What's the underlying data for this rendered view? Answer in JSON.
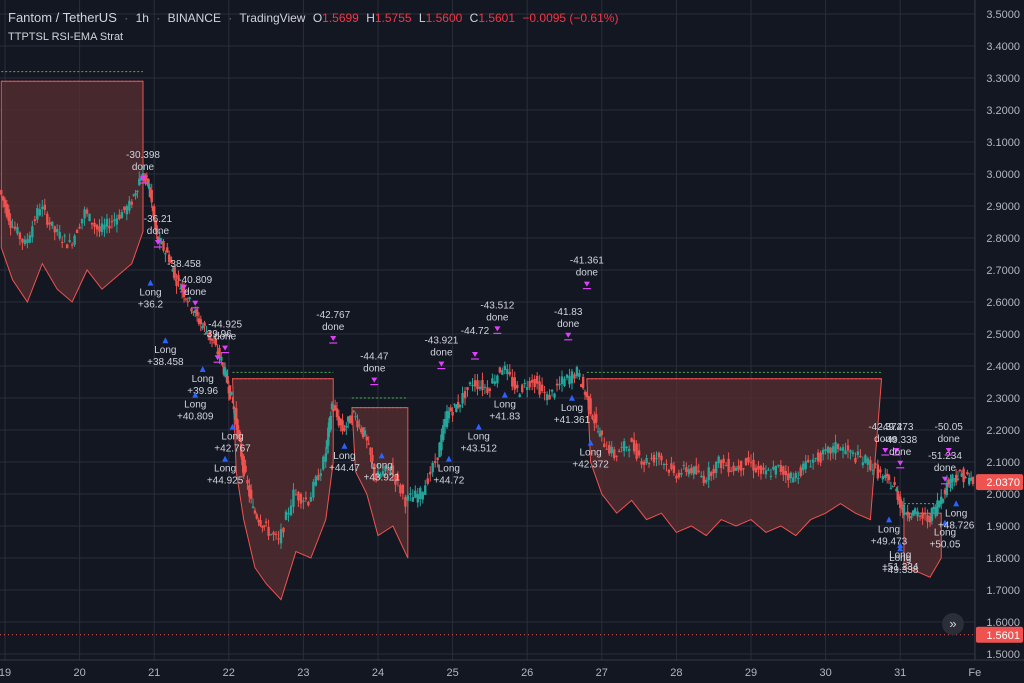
{
  "header": {
    "symbol": "Fantom / TetherUS",
    "interval": "1h",
    "exchange": "BINANCE",
    "source": "TradingView",
    "open_label": "O",
    "open": "1.5699",
    "high_label": "H",
    "high": "1.5755",
    "low_label": "L",
    "low": "1.5600",
    "close_label": "C",
    "close": "1.5601",
    "change": "−0.0095 (−0.61%)"
  },
  "study_title": "TTPTSL RSI-EMA Strat",
  "colors": {
    "background": "#131722",
    "grid": "#2a2e39",
    "up": "#26a69a",
    "down": "#ef5350",
    "stop_fill": "#5a2f30",
    "profit_line": "#4caf50",
    "entry_arrow": "#2962ff",
    "exit_marker": "#e040fb"
  },
  "chart_data": {
    "type": "candlestick",
    "y_axis": {
      "min": 1.5,
      "max": 3.5,
      "ticks": [
        "3.5000",
        "3.4000",
        "3.3000",
        "3.2000",
        "3.1000",
        "3.0000",
        "2.9000",
        "2.8000",
        "2.7000",
        "2.6000",
        "2.5000",
        "2.4000",
        "2.3000",
        "2.2000",
        "2.1000",
        "2.0000",
        "1.9000",
        "1.8000",
        "1.7000",
        "1.6000",
        "1.5000"
      ]
    },
    "x_axis": {
      "labels": [
        "19",
        "20",
        "21",
        "22",
        "23",
        "24",
        "25",
        "26",
        "27",
        "28",
        "29",
        "30",
        "31",
        "Fe"
      ]
    },
    "price_badges": [
      {
        "label": "2.0370",
        "value": 2.037,
        "color": "#ef5350"
      },
      {
        "label": "1.5601",
        "value": 1.5601,
        "color": "#ef5350"
      }
    ],
    "price_path": [
      [
        18.95,
        2.95
      ],
      [
        19.1,
        2.85
      ],
      [
        19.3,
        2.78
      ],
      [
        19.5,
        2.9
      ],
      [
        19.7,
        2.82
      ],
      [
        19.9,
        2.78
      ],
      [
        20.1,
        2.88
      ],
      [
        20.3,
        2.82
      ],
      [
        20.5,
        2.86
      ],
      [
        20.7,
        2.9
      ],
      [
        20.85,
        3.0
      ],
      [
        20.95,
        2.96
      ],
      [
        21.05,
        2.8
      ],
      [
        21.2,
        2.75
      ],
      [
        21.3,
        2.68
      ],
      [
        21.45,
        2.62
      ],
      [
        21.6,
        2.55
      ],
      [
        21.75,
        2.5
      ],
      [
        21.9,
        2.43
      ],
      [
        22.0,
        2.35
      ],
      [
        22.1,
        2.25
      ],
      [
        22.2,
        2.1
      ],
      [
        22.35,
        1.95
      ],
      [
        22.5,
        1.9
      ],
      [
        22.7,
        1.85
      ],
      [
        22.9,
        2.0
      ],
      [
        23.1,
        1.98
      ],
      [
        23.3,
        2.1
      ],
      [
        23.4,
        2.28
      ],
      [
        23.55,
        2.2
      ],
      [
        23.7,
        2.25
      ],
      [
        23.85,
        2.18
      ],
      [
        24.0,
        2.05
      ],
      [
        24.2,
        2.08
      ],
      [
        24.4,
        1.98
      ],
      [
        24.6,
        2.0
      ],
      [
        24.8,
        2.1
      ],
      [
        24.95,
        2.25
      ],
      [
        25.1,
        2.28
      ],
      [
        25.3,
        2.35
      ],
      [
        25.5,
        2.33
      ],
      [
        25.7,
        2.4
      ],
      [
        25.9,
        2.32
      ],
      [
        26.1,
        2.36
      ],
      [
        26.3,
        2.3
      ],
      [
        26.5,
        2.35
      ],
      [
        26.7,
        2.38
      ],
      [
        26.85,
        2.28
      ],
      [
        27.0,
        2.18
      ],
      [
        27.2,
        2.12
      ],
      [
        27.4,
        2.16
      ],
      [
        27.6,
        2.1
      ],
      [
        27.8,
        2.12
      ],
      [
        28.0,
        2.06
      ],
      [
        28.2,
        2.08
      ],
      [
        28.4,
        2.05
      ],
      [
        28.6,
        2.1
      ],
      [
        28.8,
        2.08
      ],
      [
        29.0,
        2.1
      ],
      [
        29.2,
        2.06
      ],
      [
        29.4,
        2.08
      ],
      [
        29.6,
        2.05
      ],
      [
        29.8,
        2.1
      ],
      [
        30.0,
        2.12
      ],
      [
        30.2,
        2.15
      ],
      [
        30.4,
        2.12
      ],
      [
        30.6,
        2.1
      ],
      [
        30.8,
        2.05
      ],
      [
        30.95,
        2.02
      ],
      [
        31.05,
        1.95
      ],
      [
        31.2,
        1.94
      ],
      [
        31.4,
        1.92
      ],
      [
        31.55,
        1.98
      ],
      [
        31.7,
        2.05
      ],
      [
        31.85,
        2.06
      ],
      [
        32.0,
        2.04
      ]
    ],
    "stop_zones": [
      {
        "x1": 18.95,
        "x2": 20.85,
        "top": 3.29,
        "profit_line": 3.32
      },
      {
        "x1": 22.05,
        "x2": 23.4,
        "top": 2.36,
        "profit_line": 2.38
      },
      {
        "x1": 23.65,
        "x2": 24.4,
        "top": 2.27,
        "profit_line": 2.3
      },
      {
        "x1": 26.8,
        "x2": 30.75,
        "top": 2.36,
        "profit_line": 2.38
      },
      {
        "x1": 31.05,
        "x2": 31.55,
        "top": 1.94,
        "profit_line": 1.97
      }
    ],
    "current_price_line": 1.5601,
    "trade_labels": [
      {
        "text": "-30.398",
        "sub": "done",
        "x": 20.85,
        "y": 3.05,
        "kind": "exit"
      },
      {
        "text": "-36.21",
        "sub": "done",
        "x": 21.05,
        "y": 2.85,
        "kind": "exit"
      },
      {
        "text": "-38.458",
        "sub": "",
        "x": 21.4,
        "y": 2.71,
        "kind": "exit"
      },
      {
        "text": "-40.809",
        "sub": "done",
        "x": 21.55,
        "y": 2.66,
        "kind": "exit"
      },
      {
        "text": "-44.925",
        "sub": "done",
        "x": 21.95,
        "y": 2.52,
        "kind": "exit"
      },
      {
        "text": "-39.96",
        "sub": "",
        "x": 21.85,
        "y": 2.49,
        "kind": "exit"
      },
      {
        "text": "-42.767",
        "sub": "done",
        "x": 23.4,
        "y": 2.55,
        "kind": "exit"
      },
      {
        "text": "-44.47",
        "sub": "done",
        "x": 23.95,
        "y": 2.42,
        "kind": "exit"
      },
      {
        "text": "-43.921",
        "sub": "done",
        "x": 24.85,
        "y": 2.47,
        "kind": "exit"
      },
      {
        "text": "-44.72",
        "sub": "",
        "x": 25.3,
        "y": 2.5,
        "kind": "exit"
      },
      {
        "text": "-43.512",
        "sub": "done",
        "x": 25.6,
        "y": 2.58,
        "kind": "exit"
      },
      {
        "text": "-41.83",
        "sub": "done",
        "x": 26.55,
        "y": 2.56,
        "kind": "exit"
      },
      {
        "text": "-41.361",
        "sub": "done",
        "x": 26.8,
        "y": 2.72,
        "kind": "exit"
      },
      {
        "text": "-42.372",
        "sub": "done",
        "x": 30.8,
        "y": 2.2,
        "kind": "exit"
      },
      {
        "text": "-49.473",
        "sub": "",
        "x": 30.95,
        "y": 2.2,
        "kind": "exit"
      },
      {
        "text": "-49.338",
        "sub": "done",
        "x": 31.0,
        "y": 2.16,
        "kind": "exit"
      },
      {
        "text": "-51.234",
        "sub": "done",
        "x": 31.6,
        "y": 2.11,
        "kind": "exit"
      },
      {
        "text": "-50.05",
        "sub": "done",
        "x": 31.65,
        "y": 2.2,
        "kind": "exit"
      },
      {
        "text": "Long",
        "sub": "+36.2",
        "x": 20.95,
        "y": 2.62,
        "kind": "entry"
      },
      {
        "text": "Long",
        "sub": "+38.458",
        "x": 21.15,
        "y": 2.44,
        "kind": "entry"
      },
      {
        "text": "Long",
        "sub": "+39.96",
        "x": 21.65,
        "y": 2.35,
        "kind": "entry"
      },
      {
        "text": "Long",
        "sub": "+40.809",
        "x": 21.55,
        "y": 2.27,
        "kind": "entry"
      },
      {
        "text": "Long",
        "sub": "+42.767",
        "x": 22.05,
        "y": 2.17,
        "kind": "entry"
      },
      {
        "text": "Long",
        "sub": "+44.925",
        "x": 21.95,
        "y": 2.07,
        "kind": "entry"
      },
      {
        "text": "Long",
        "sub": "+44.47",
        "x": 23.55,
        "y": 2.11,
        "kind": "entry"
      },
      {
        "text": "Long",
        "sub": "+43.921",
        "x": 24.05,
        "y": 2.08,
        "kind": "entry"
      },
      {
        "text": "Long",
        "sub": "+44.72",
        "x": 24.95,
        "y": 2.07,
        "kind": "entry"
      },
      {
        "text": "Long",
        "sub": "+43.512",
        "x": 25.35,
        "y": 2.17,
        "kind": "entry"
      },
      {
        "text": "Long",
        "sub": "+41.83",
        "x": 25.7,
        "y": 2.27,
        "kind": "entry"
      },
      {
        "text": "Long",
        "sub": "+41.361",
        "x": 26.6,
        "y": 2.26,
        "kind": "entry"
      },
      {
        "text": "Long",
        "sub": "+42.372",
        "x": 26.85,
        "y": 2.12,
        "kind": "entry"
      },
      {
        "text": "Long",
        "sub": "+49.473",
        "x": 30.85,
        "y": 1.88,
        "kind": "entry"
      },
      {
        "text": "Long",
        "sub": "+51.234",
        "x": 31.0,
        "y": 1.8,
        "kind": "entry"
      },
      {
        "text": "Long",
        "sub": "+49.338",
        "x": 31.0,
        "y": 1.79,
        "kind": "entry"
      },
      {
        "text": "Long",
        "sub": "+50.05",
        "x": 31.6,
        "y": 1.87,
        "kind": "entry"
      },
      {
        "text": "Long",
        "sub": "+48.726",
        "x": 31.75,
        "y": 1.93,
        "kind": "entry"
      }
    ]
  },
  "scroll_button": "»"
}
